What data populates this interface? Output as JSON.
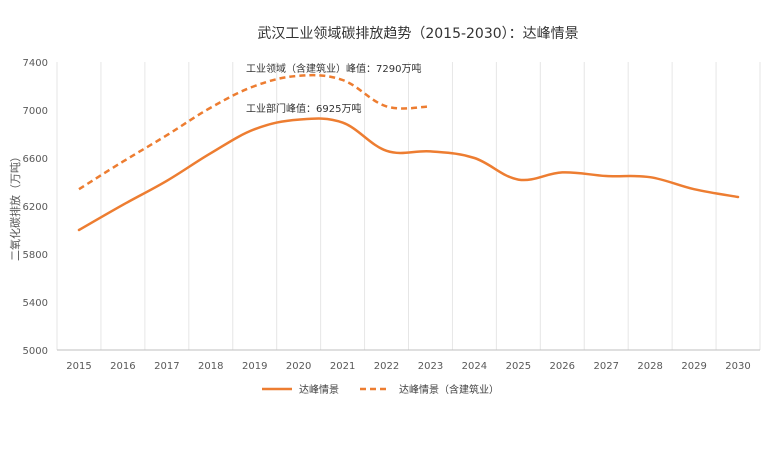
{
  "chart_data": {
    "type": "line",
    "title": "武汉工业领域碳排放趋势（2015-2030）：达峰情景",
    "xlabel": "",
    "ylabel": "二氧化碳排放（万吨）",
    "x": [
      2015,
      2016,
      2017,
      2018,
      2019,
      2020,
      2021,
      2022,
      2023,
      2024,
      2025,
      2026,
      2027,
      2028,
      2029,
      2030
    ],
    "ylim": [
      5000,
      7400
    ],
    "yticks": [
      5000,
      5400,
      5800,
      6200,
      6600,
      7000,
      7400
    ],
    "grid": "vertical",
    "legend_position": "bottom",
    "series": [
      {
        "name": "达峰情景",
        "style": "solid",
        "color": "#ed7d31",
        "x": [
          2015,
          2016,
          2017,
          2018,
          2019,
          2020,
          2021,
          2022,
          2023,
          2024,
          2025,
          2026,
          2027,
          2028,
          2029,
          2030
        ],
        "values": [
          6000,
          6210,
          6410,
          6640,
          6840,
          6920,
          6895,
          6660,
          6655,
          6600,
          6420,
          6480,
          6450,
          6440,
          6340,
          6275
        ]
      },
      {
        "name": "达峰情景（含建筑业）",
        "style": "dashed",
        "color": "#ed7d31",
        "x": [
          2015,
          2016,
          2017,
          2018,
          2019,
          2020,
          2021,
          2022,
          2023
        ],
        "values": [
          6340,
          6570,
          6790,
          7020,
          7200,
          7285,
          7250,
          7030,
          7030
        ]
      }
    ],
    "annotations": [
      {
        "text": "工业领域（含建筑业）峰值：7290万吨",
        "x": 2020,
        "y": 7290
      },
      {
        "text": "工业部门峰值：6925万吨",
        "x": 2020,
        "y": 6925
      }
    ]
  }
}
